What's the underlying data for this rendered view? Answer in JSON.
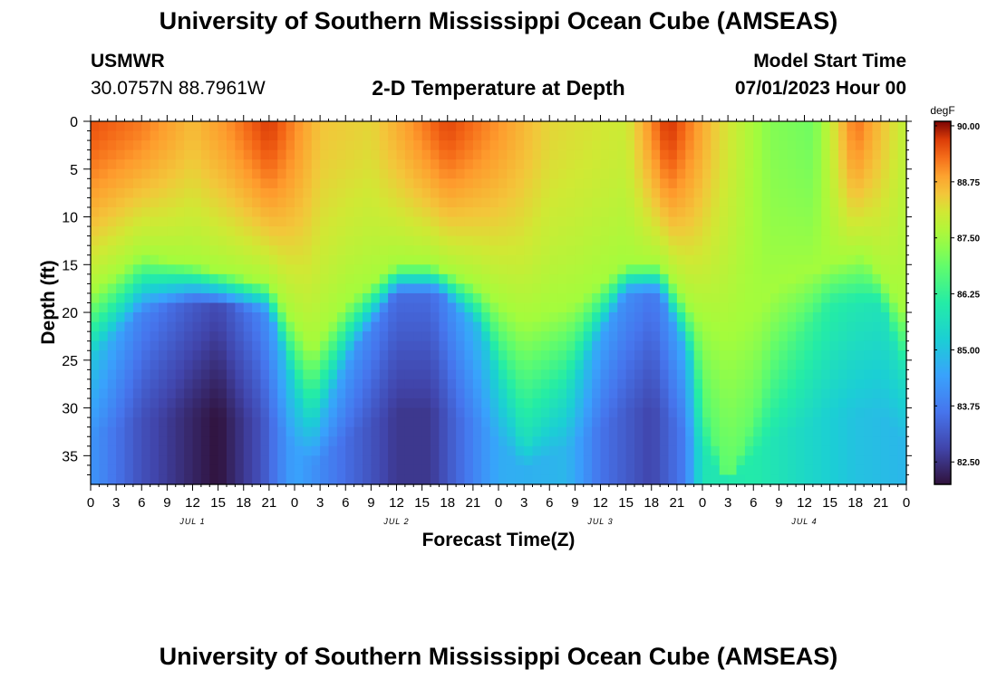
{
  "header": {
    "title": "University of Southern Mississippi Ocean Cube (AMSEAS)",
    "station": "USMWR",
    "coords": "30.0757N  88.7961W",
    "chart_title": "2-D Temperature at Depth",
    "model_label": "Model Start Time",
    "model_time": "07/01/2023 Hour 00"
  },
  "footer": {
    "title": "University of Southern Mississippi Ocean Cube (AMSEAS)"
  },
  "chart_data": {
    "type": "heatmap",
    "title": "2-D Temperature at Depth",
    "xlabel": "Forecast Time(Z)",
    "ylabel": "Depth (ft)",
    "x_range_hours": [
      0,
      96
    ],
    "xticks_hours": [
      0,
      3,
      6,
      9,
      12,
      15,
      18,
      21,
      24,
      27,
      30,
      33,
      36,
      39,
      42,
      45,
      48,
      51,
      54,
      57,
      60,
      63,
      66,
      69,
      72,
      75,
      78,
      81,
      84,
      87,
      90,
      93,
      96
    ],
    "xtick_labels": [
      "0",
      "3",
      "6",
      "9",
      "12",
      "15",
      "18",
      "21",
      "0",
      "3",
      "6",
      "9",
      "12",
      "15",
      "18",
      "21",
      "0",
      "3",
      "6",
      "9",
      "12",
      "15",
      "18",
      "21",
      "0",
      "3",
      "6",
      "9",
      "12",
      "15",
      "18",
      "21",
      "0"
    ],
    "day_labels": [
      {
        "hour": 12,
        "label": "JUL 1"
      },
      {
        "hour": 36,
        "label": "JUL 2"
      },
      {
        "hour": 60,
        "label": "JUL 3"
      },
      {
        "hour": 84,
        "label": "JUL 4"
      }
    ],
    "y_range_ft": [
      0,
      38
    ],
    "yticks": [
      0,
      5,
      10,
      15,
      20,
      25,
      30,
      35
    ],
    "colorbar": {
      "unit": "degF",
      "min": 82.0,
      "max": 90.1,
      "ticks": [
        "90.00",
        "88.75",
        "87.50",
        "86.25",
        "85.00",
        "83.75",
        "82.50"
      ],
      "tick_values": [
        90.0,
        88.75,
        87.5,
        86.25,
        85.0,
        83.75,
        82.5
      ]
    },
    "approx_surface_temp_degF": [
      [
        0,
        89.5
      ],
      [
        6,
        89.2
      ],
      [
        12,
        88.6
      ],
      [
        16,
        89.0
      ],
      [
        21,
        89.7
      ],
      [
        27,
        88.5
      ],
      [
        33,
        88.3
      ],
      [
        42,
        89.6
      ],
      [
        48,
        89.0
      ],
      [
        54,
        88.3
      ],
      [
        63,
        88.0
      ],
      [
        68,
        89.8
      ],
      [
        74,
        88.3
      ],
      [
        80,
        87.2
      ],
      [
        85,
        87.0
      ],
      [
        90,
        89.3
      ],
      [
        96,
        87.8
      ]
    ],
    "approx_bottom_temp_degF": [
      [
        0,
        84.2
      ],
      [
        6,
        83.0
      ],
      [
        12,
        82.3
      ],
      [
        15,
        82.0
      ],
      [
        20,
        83.0
      ],
      [
        24,
        84.5
      ],
      [
        30,
        83.5
      ],
      [
        36,
        82.6
      ],
      [
        40,
        82.6
      ],
      [
        44,
        83.6
      ],
      [
        48,
        84.6
      ],
      [
        56,
        84.8
      ],
      [
        60,
        83.6
      ],
      [
        66,
        82.8
      ],
      [
        70,
        83.8
      ],
      [
        72,
        85.8
      ],
      [
        78,
        86.0
      ],
      [
        84,
        85.5
      ],
      [
        90,
        85.0
      ],
      [
        96,
        84.8
      ]
    ],
    "approx_thermocline_top_ft": [
      [
        0,
        18
      ],
      [
        6,
        14
      ],
      [
        12,
        15
      ],
      [
        21,
        17
      ],
      [
        26,
        24
      ],
      [
        30,
        19
      ],
      [
        36,
        15
      ],
      [
        40,
        15
      ],
      [
        45,
        17
      ],
      [
        51,
        21
      ],
      [
        57,
        19
      ],
      [
        63,
        15
      ],
      [
        67,
        15
      ],
      [
        71,
        20
      ],
      [
        75,
        23
      ],
      [
        81,
        17
      ],
      [
        87,
        15
      ],
      [
        91,
        14
      ],
      [
        96,
        20
      ]
    ],
    "approx_cold_core_top_ft": [
      [
        0,
        25
      ],
      [
        6,
        20
      ],
      [
        12,
        19
      ],
      [
        21,
        20
      ],
      [
        26,
        33
      ],
      [
        31,
        24
      ],
      [
        36,
        18
      ],
      [
        41,
        18
      ],
      [
        46,
        22
      ],
      [
        51,
        34
      ],
      [
        57,
        27
      ],
      [
        63,
        18
      ],
      [
        67,
        18
      ],
      [
        71,
        26
      ],
      [
        75,
        38
      ],
      [
        80,
        26
      ],
      [
        87,
        19
      ],
      [
        93,
        19
      ],
      [
        96,
        27
      ]
    ]
  }
}
